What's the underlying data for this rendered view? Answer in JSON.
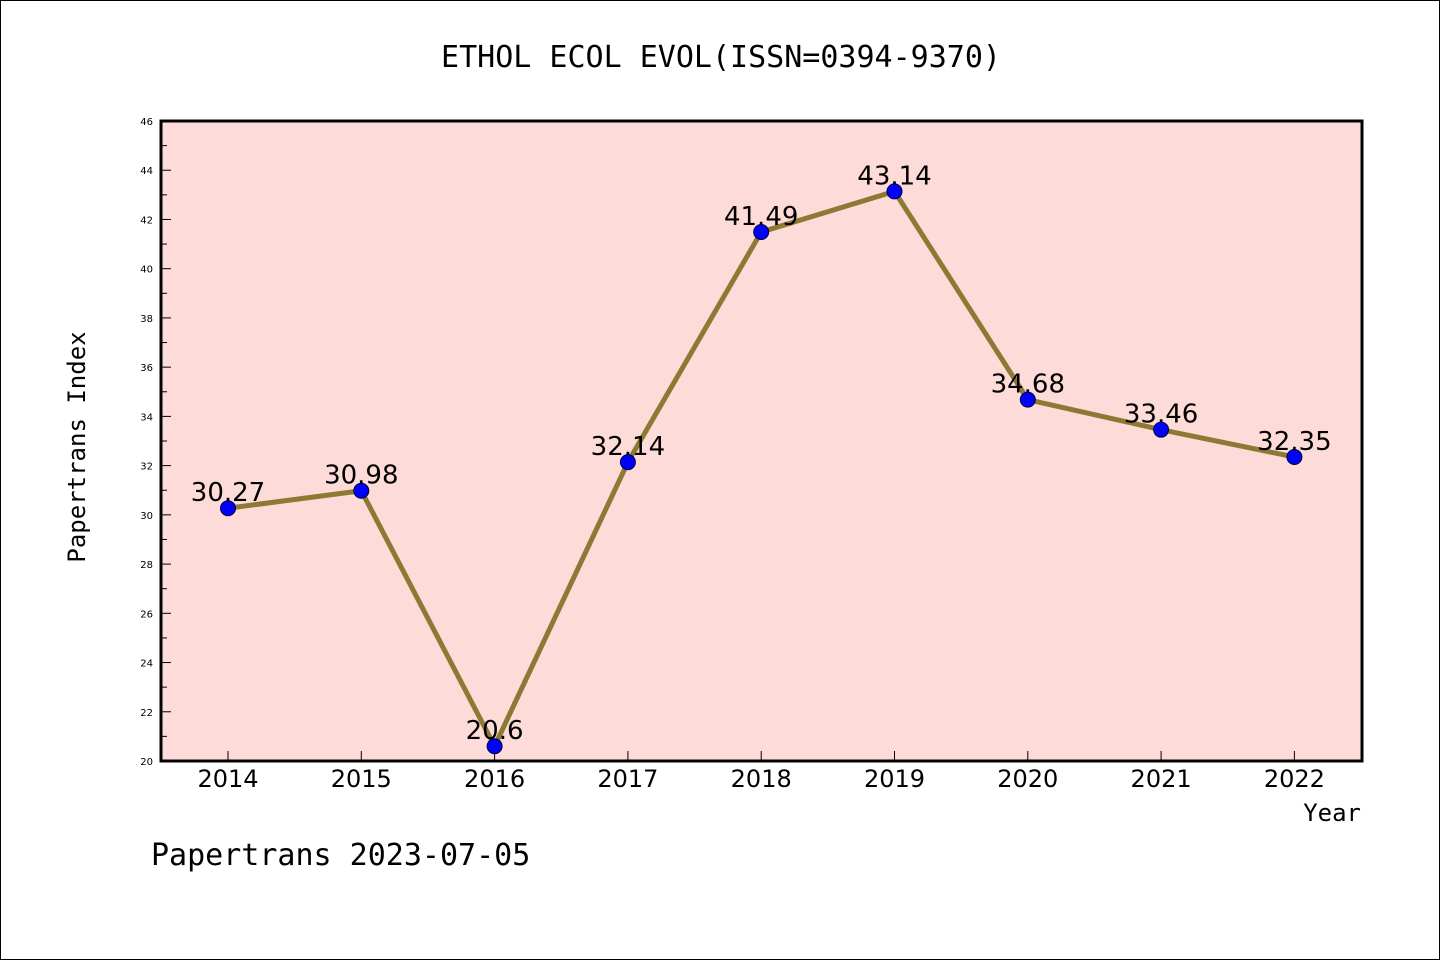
{
  "footer": {
    "text": "Papertrans 2023-07-05"
  },
  "colors": {
    "plot_background": "#fddbd8",
    "line": "#8c7a34",
    "marker": "#0000ff",
    "axis": "#000000"
  },
  "chart_data": {
    "type": "line",
    "title": "ETHOL ECOL EVOL(ISSN=0394-9370)",
    "xlabel": "Year",
    "ylabel": "Papertrans Index",
    "categories": [
      "2014",
      "2015",
      "2016",
      "2017",
      "2018",
      "2019",
      "2020",
      "2021",
      "2022"
    ],
    "series": [
      {
        "values": [
          30.27,
          30.98,
          20.6,
          32.14,
          41.49,
          43.14,
          34.68,
          33.46,
          32.35
        ]
      }
    ],
    "data_labels": [
      "30.27",
      "30.98",
      "20.6",
      "32.14",
      "41.49",
      "43.14",
      "34.68",
      "33.46",
      "32.35"
    ],
    "ylim": [
      20,
      46
    ],
    "yticks": [
      "20",
      "22",
      "24",
      "26",
      "28",
      "30",
      "32",
      "34",
      "36",
      "38",
      "40",
      "42",
      "44",
      "46"
    ],
    "grid": false,
    "legend": "none"
  }
}
